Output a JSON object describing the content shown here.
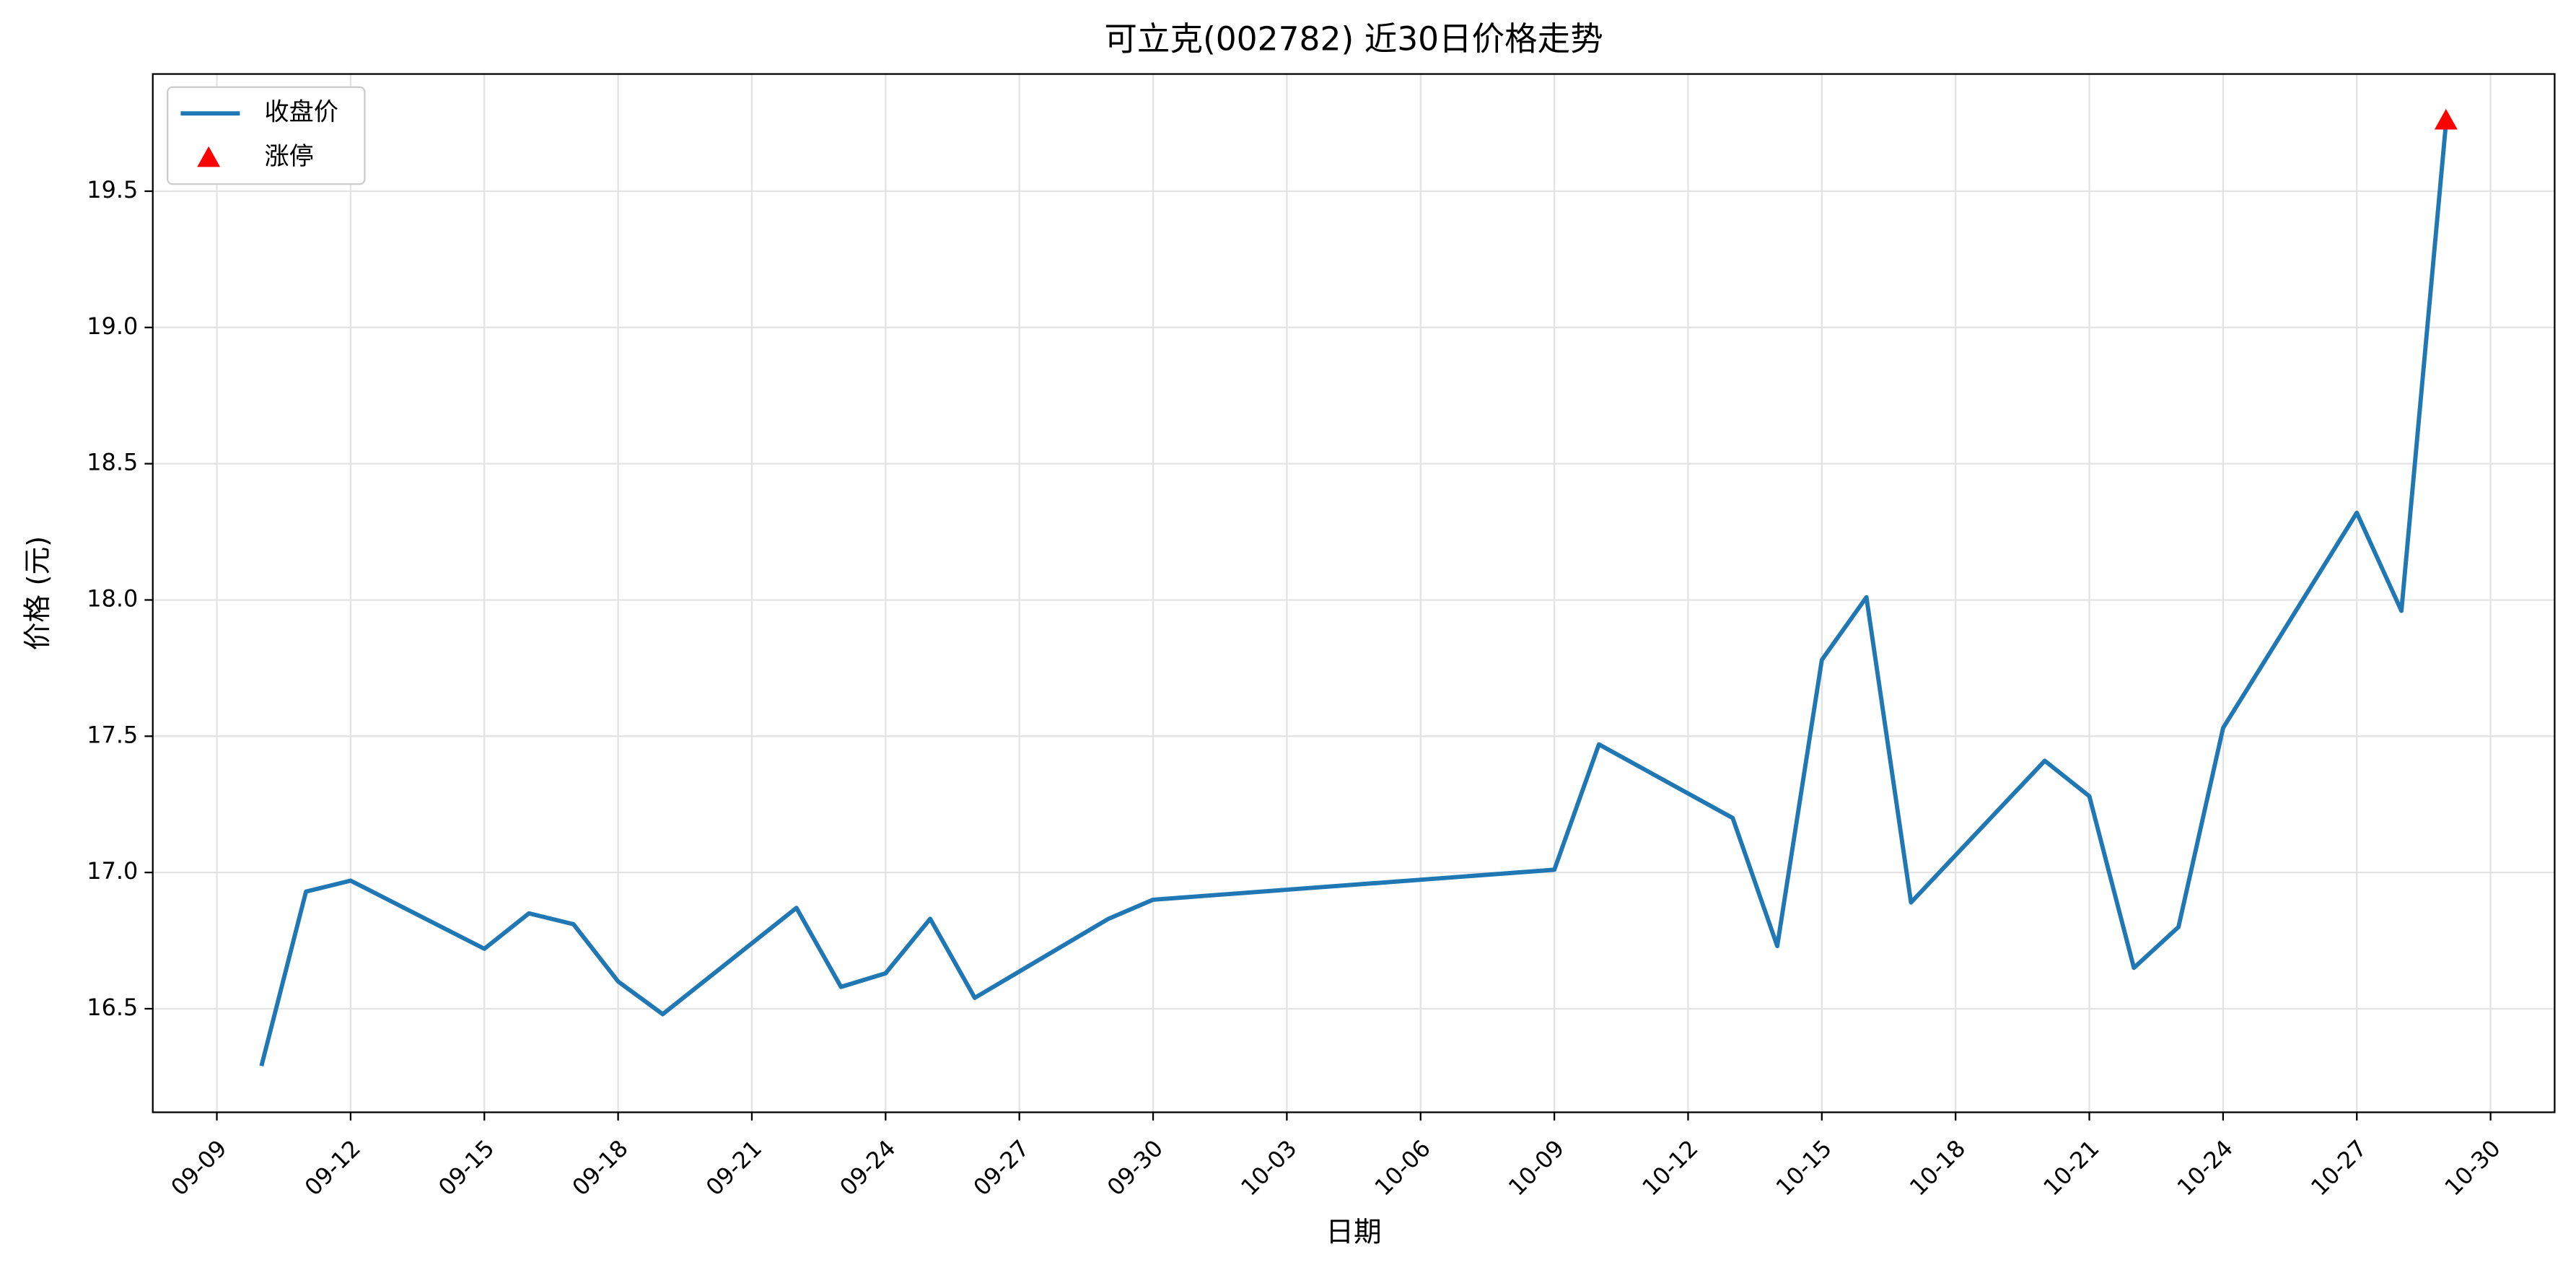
{
  "chart_data": {
    "type": "line",
    "title": "可立克(002782) 近30日价格走势",
    "xlabel": "日期",
    "ylabel": "价格 (元)",
    "x": [
      "09-10",
      "09-11",
      "09-12",
      "09-15",
      "09-16",
      "09-17",
      "09-18",
      "09-19",
      "09-22",
      "09-23",
      "09-24",
      "09-25",
      "09-26",
      "09-29",
      "09-30",
      "10-09",
      "10-10",
      "10-13",
      "10-14",
      "10-15",
      "10-16",
      "10-17",
      "10-20",
      "10-21",
      "10-22",
      "10-23",
      "10-24",
      "10-27",
      "10-28",
      "10-29"
    ],
    "series": [
      {
        "name": "收盘价",
        "color": "#1f77b4",
        "values": [
          16.29,
          16.93,
          16.97,
          16.72,
          16.85,
          16.81,
          16.6,
          16.48,
          16.87,
          16.58,
          16.63,
          16.83,
          16.54,
          16.83,
          16.9,
          17.01,
          17.47,
          17.2,
          16.73,
          17.78,
          18.01,
          16.89,
          17.41,
          17.28,
          16.65,
          16.8,
          17.53,
          18.32,
          17.96,
          19.75
        ]
      },
      {
        "name": "涨停",
        "color": "#ff0000",
        "marker": "triangle",
        "values": [
          null,
          null,
          null,
          null,
          null,
          null,
          null,
          null,
          null,
          null,
          null,
          null,
          null,
          null,
          null,
          null,
          null,
          null,
          null,
          null,
          null,
          null,
          null,
          null,
          null,
          null,
          null,
          null,
          null,
          19.76
        ]
      }
    ],
    "xticks": [
      "09-09",
      "09-12",
      "09-15",
      "09-18",
      "09-21",
      "09-24",
      "09-27",
      "09-30",
      "10-03",
      "10-06",
      "10-09",
      "10-12",
      "10-15",
      "10-18",
      "10-21",
      "10-24",
      "10-27",
      "10-30"
    ],
    "ylim": [
      16.12,
      19.93
    ],
    "yticks": [
      16.5,
      {
        "value": 17,
        "label": "17.0"
      },
      17.5,
      {
        "value": 18,
        "label": "18.0"
      },
      18.5,
      {
        "value": 19,
        "label": "19.0"
      },
      19.5
    ],
    "grid": true,
    "legend": "upper left"
  }
}
